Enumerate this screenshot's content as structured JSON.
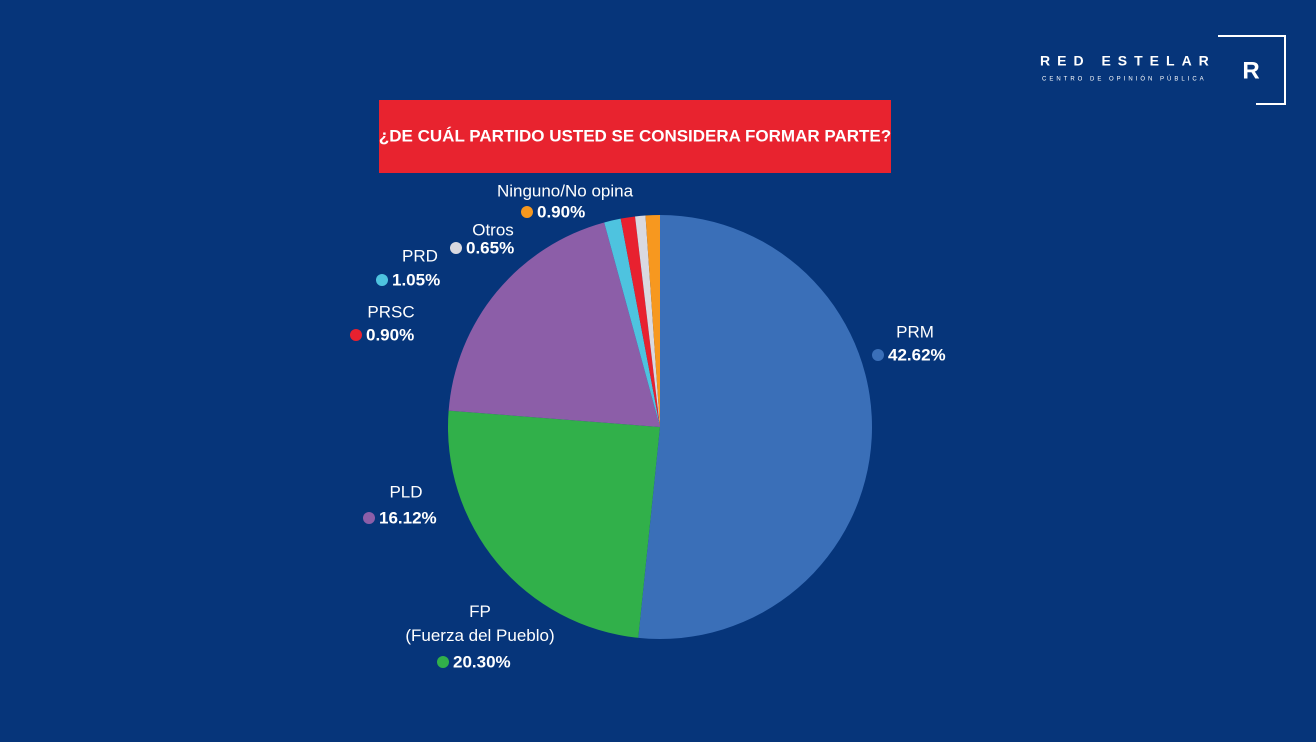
{
  "brand": {
    "name": "RED ESTELAR",
    "tagline": "CENTRO DE OPINIÓN PÚBLICA",
    "mark": "R"
  },
  "chart_data": {
    "type": "pie",
    "title": "¿DE CUÁL PARTIDO USTED SE CONSIDERA FORMAR PARTE?",
    "categories": [
      "PRM",
      "FP\n(Fuerza del Pueblo)",
      "PLD",
      "PRD",
      "PRSC",
      "Otros",
      "Ninguno/No opina"
    ],
    "values": [
      42.62,
      20.3,
      16.12,
      1.05,
      0.9,
      0.65,
      0.9
    ],
    "value_labels": [
      "42.62%",
      "20.30%",
      "16.12%",
      "1.05%",
      "0.90%",
      "0.65%",
      "0.90%"
    ],
    "colors": [
      "#3a6fb8",
      "#31b04a",
      "#8c5ea8",
      "#4ec3df",
      "#e8212f",
      "#d9d9e0",
      "#f7981f"
    ]
  }
}
